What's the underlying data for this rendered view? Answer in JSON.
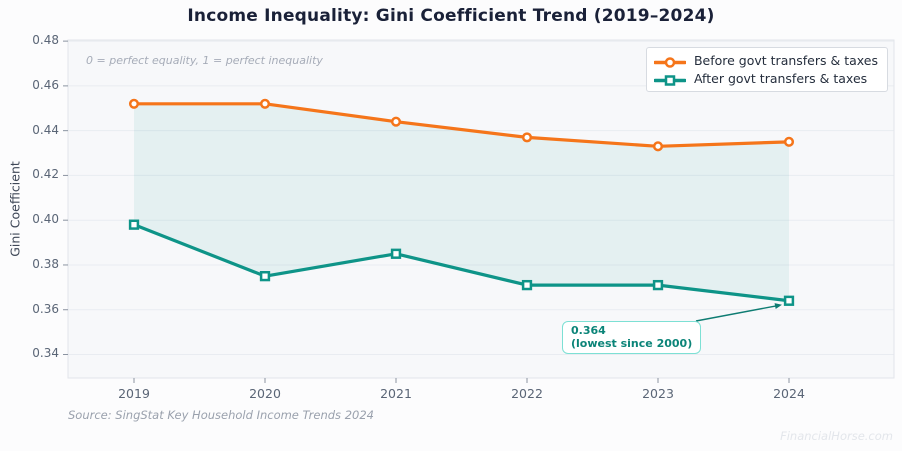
{
  "title": "Income Inequality: Gini Coefficient Trend (2019–2024)",
  "note": "0 = perfect equality, 1 = perfect inequality",
  "ylabel": "Gini Coefficient",
  "source": "Source: SingStat Key Household Income Trends 2024",
  "watermark": "FinancialHorse.com",
  "legend": {
    "position": "upper right",
    "items": [
      {
        "label": "Before govt transfers & taxes",
        "marker": "circle",
        "color": "#f5751a"
      },
      {
        "label": "After govt transfers & taxes",
        "marker": "square",
        "color": "#0e9488"
      }
    ]
  },
  "callout": {
    "value": "0.364",
    "caption": "(lowest since 2000)"
  },
  "colors": {
    "figure_bg": "#fcfcfd",
    "plot_bg": "#f7f8fa",
    "grid": "#e9ecf1",
    "plot_border": "#e2e5ea",
    "tick": "#8b93a1",
    "tick_label": "#5a6576",
    "title": "#1a2138",
    "axis_title": "#3e4757",
    "series_before": "#f5751a",
    "series_after": "#0e9488",
    "fill_between": "rgba(14,148,136,0.08)",
    "legend_border": "#d7dbe1",
    "legend_bg": "#ffffff",
    "legend_text": "#252e3d",
    "note_text": "#a6acb8",
    "source_text": "#9aa1ad",
    "watermark_text": "#e3e6eb",
    "callout_border": "#7de0d4",
    "callout_bg": "#ffffff",
    "callout_text": "#0b8478",
    "arrow": "#0e7c72"
  },
  "chart_data": {
    "type": "line",
    "title": "Income Inequality: Gini Coefficient Trend (2019–2024)",
    "xlabel": "",
    "ylabel": "Gini Coefficient",
    "categories": [
      "2019",
      "2020",
      "2021",
      "2022",
      "2023",
      "2024"
    ],
    "series": [
      {
        "name": "Before govt transfers & taxes",
        "marker": "circle",
        "color": "#f5751a",
        "values": [
          0.452,
          0.452,
          0.444,
          0.437,
          0.433,
          0.435
        ]
      },
      {
        "name": "After govt transfers & taxes",
        "marker": "square",
        "color": "#0e9488",
        "values": [
          0.398,
          0.375,
          0.385,
          0.371,
          0.371,
          0.364
        ]
      }
    ],
    "fill_between_series": true,
    "ylim": [
      0.33,
      0.48
    ],
    "yticks": [
      0.34,
      0.36,
      0.38,
      0.4,
      0.42,
      0.44,
      0.46,
      0.48
    ],
    "grid": true,
    "legend_position": "upper right",
    "annotations": [
      {
        "text": "0 = perfect equality, 1 = perfect inequality",
        "position": "upper left"
      },
      {
        "text": "0.364 (lowest since 2000)",
        "target_category": "2024",
        "target_series": "After govt transfers & taxes",
        "target_value": 0.364
      }
    ]
  }
}
